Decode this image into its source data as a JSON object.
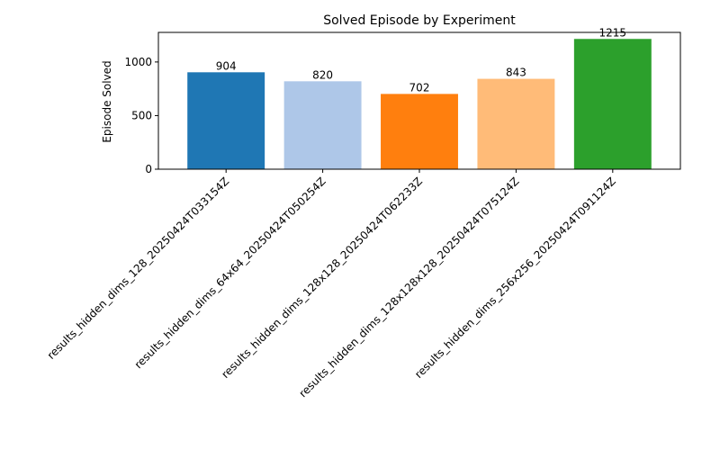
{
  "chart_data": {
    "type": "bar",
    "title": "Solved Episode by Experiment",
    "xlabel": "",
    "ylabel": "Episode Solved",
    "categories": [
      "results_hidden_dims_128_20250424T033154Z",
      "results_hidden_dims_64x64_20250424T050254Z",
      "results_hidden_dims_128x128_20250424T062233Z",
      "results_hidden_dims_128x128x128_20250424T075124Z",
      "results_hidden_dims_256x256_20250424T091124Z"
    ],
    "values": [
      904,
      820,
      702,
      843,
      1215
    ],
    "bar_labels": [
      "904",
      "820",
      "702",
      "843",
      "1215"
    ],
    "colors": [
      "#1f77b4",
      "#aec7e8",
      "#ff7f0e",
      "#ffbb78",
      "#2ca02c"
    ],
    "ylim": [
      0,
      1276
    ],
    "yticks": [
      0,
      500,
      1000
    ],
    "ytick_labels": [
      "0",
      "500",
      "1000"
    ],
    "grid": false,
    "legend": "none"
  }
}
